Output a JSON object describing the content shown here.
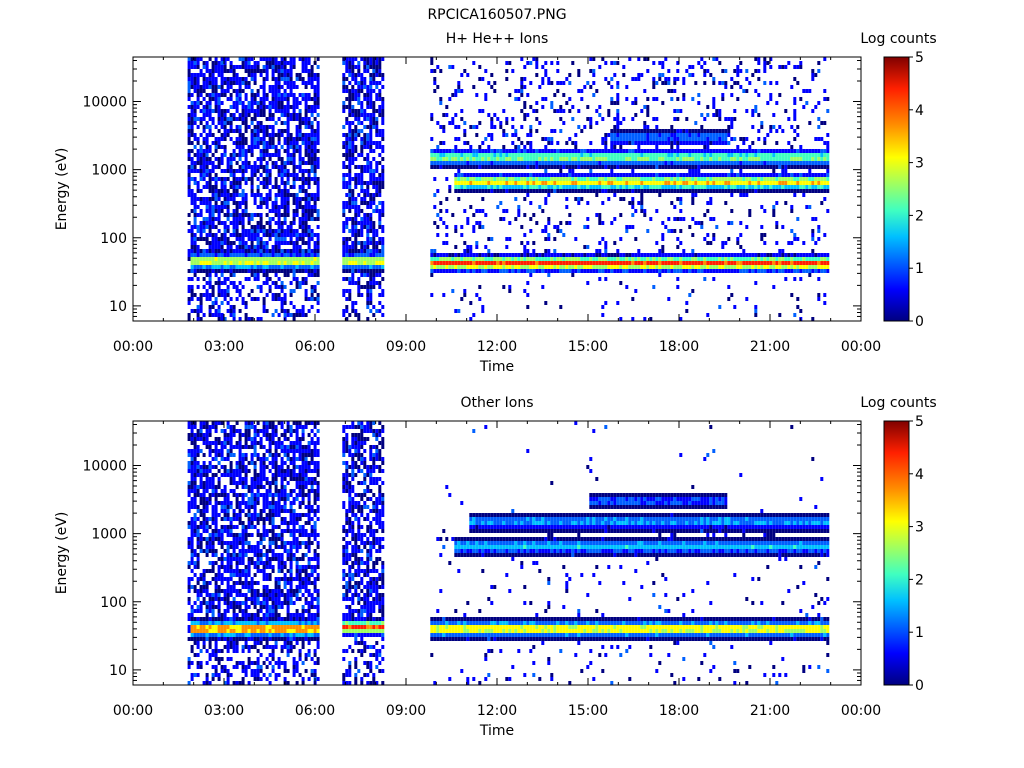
{
  "figure_title": "RPCICA160507.PNG",
  "colors": {
    "background": "#ffffff",
    "colormap": [
      "#000080",
      "#0000ff",
      "#0060ff",
      "#00c0ff",
      "#40ffc0",
      "#a0ff60",
      "#ffff00",
      "#ff9000",
      "#ff2000",
      "#800000"
    ]
  },
  "chart_data": [
    {
      "type": "heatmap",
      "title": "H+ He++ Ions",
      "xlabel": "Time",
      "ylabel": "Energy (eV)",
      "x_ticks": [
        "00:00",
        "03:00",
        "06:00",
        "09:00",
        "12:00",
        "15:00",
        "18:00",
        "21:00",
        "00:00"
      ],
      "x_range_hours": [
        0,
        24
      ],
      "y_scale": "log",
      "y_ticks": [
        "10",
        "100",
        "1000",
        "10000"
      ],
      "y_range_eV": [
        6,
        45000
      ],
      "colorbar": {
        "label": "Log counts",
        "ticks": [
          "0",
          "1",
          "2",
          "3",
          "4",
          "5"
        ],
        "range": [
          0,
          5
        ]
      },
      "data_intervals_hours": [
        [
          1.8,
          6.1
        ],
        [
          6.9,
          8.2
        ],
        [
          9.8,
          22.9
        ]
      ],
      "bands": [
        {
          "start_hour": 1.8,
          "end_hour": 6.1,
          "center_eV": 45,
          "peak_log_counts": 3.2
        },
        {
          "start_hour": 6.9,
          "end_hour": 8.2,
          "center_eV": 45,
          "peak_log_counts": 3.2
        },
        {
          "start_hour": 9.8,
          "end_hour": 22.9,
          "center_eV": 42,
          "peak_log_counts": 4.2
        },
        {
          "start_hour": 10.5,
          "end_hour": 22.9,
          "center_eV": 650,
          "peak_log_counts": 3.4
        },
        {
          "start_hour": 9.8,
          "end_hour": 22.9,
          "center_eV": 1500,
          "peak_log_counts": 2.6
        },
        {
          "start_hour": 15.7,
          "end_hour": 19.5,
          "center_eV": 3000,
          "peak_log_counts": 1.3
        }
      ]
    },
    {
      "type": "heatmap",
      "title": "Other Ions",
      "xlabel": "Time",
      "ylabel": "Energy (eV)",
      "x_ticks": [
        "00:00",
        "03:00",
        "06:00",
        "09:00",
        "12:00",
        "15:00",
        "18:00",
        "21:00",
        "00:00"
      ],
      "x_range_hours": [
        0,
        24
      ],
      "y_scale": "log",
      "y_ticks": [
        "10",
        "100",
        "1000",
        "10000"
      ],
      "y_range_eV": [
        6,
        45000
      ],
      "colorbar": {
        "label": "Log counts",
        "ticks": [
          "0",
          "1",
          "2",
          "3",
          "4",
          "5"
        ],
        "range": [
          0,
          5
        ]
      },
      "data_intervals_hours": [
        [
          1.8,
          6.1
        ],
        [
          6.9,
          8.2
        ],
        [
          9.8,
          22.9
        ]
      ],
      "bands": [
        {
          "start_hour": 1.8,
          "end_hour": 6.1,
          "center_eV": 40,
          "peak_log_counts": 4.0
        },
        {
          "start_hour": 6.9,
          "end_hour": 8.2,
          "center_eV": 42,
          "peak_log_counts": 4.0
        },
        {
          "start_hour": 9.8,
          "end_hour": 22.9,
          "center_eV": 40,
          "peak_log_counts": 3.5
        },
        {
          "start_hour": 10.5,
          "end_hour": 22.9,
          "center_eV": 650,
          "peak_log_counts": 1.8
        },
        {
          "start_hour": 11.0,
          "end_hour": 22.9,
          "center_eV": 1500,
          "peak_log_counts": 1.6
        },
        {
          "start_hour": 15.0,
          "end_hour": 19.5,
          "center_eV": 3000,
          "peak_log_counts": 1.1
        }
      ]
    }
  ]
}
